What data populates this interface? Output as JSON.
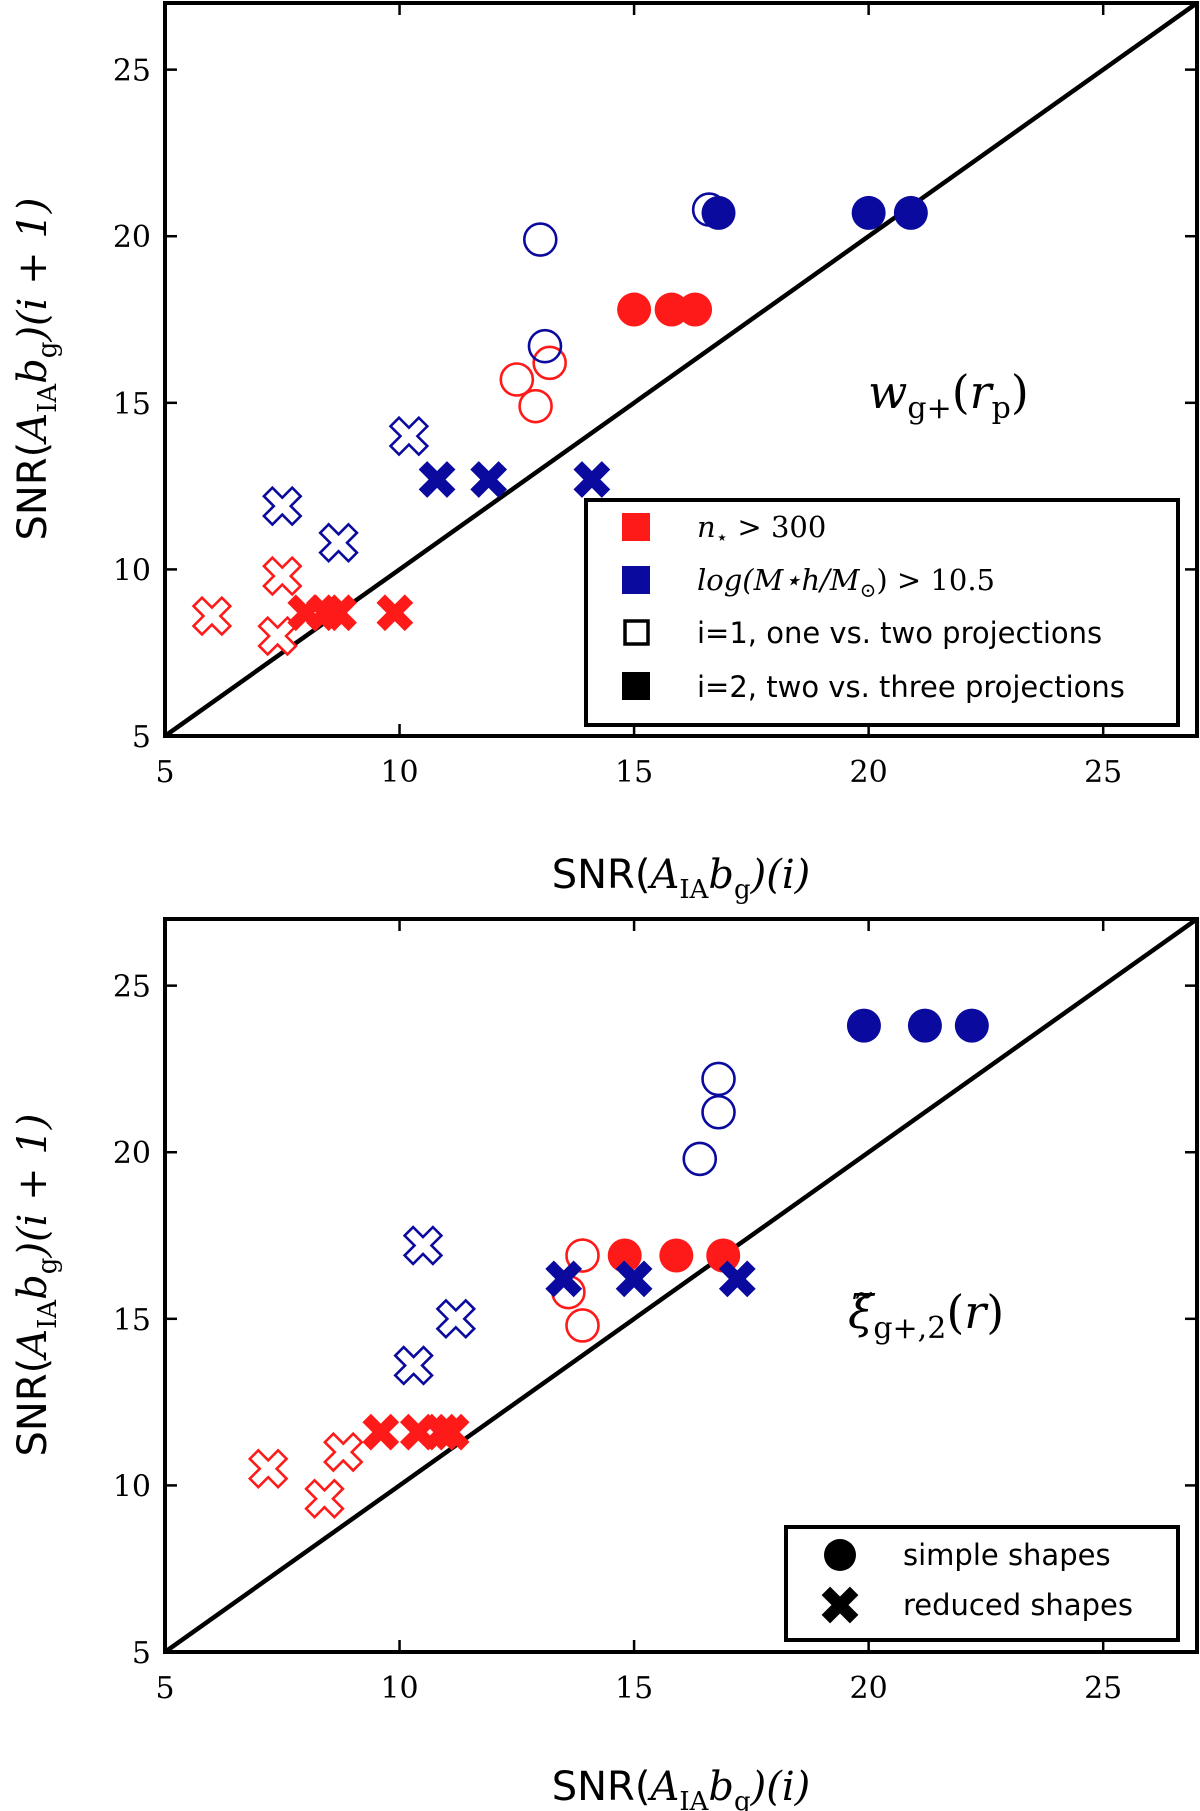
{
  "chart_data": [
    {
      "type": "scatter",
      "panel": "top",
      "annotation": {
        "main": "w",
        "sub1": "g+",
        "open": "(",
        "arg": "r",
        "sub2": "p",
        "close": ")"
      },
      "xlabel": {
        "prefix": "SNR(",
        "A": "A",
        "A_sub": "IA",
        "b": "b",
        "b_sub": "g",
        "suffix": ")(i)"
      },
      "ylabel": {
        "prefix": "SNR(",
        "A": "A",
        "A_sub": "IA",
        "b": "b",
        "b_sub": "g",
        "suffix": ")(i + 1)"
      },
      "xlim": [
        5,
        27
      ],
      "ylim": [
        5,
        27
      ],
      "xticks": [
        5,
        10,
        15,
        20,
        25
      ],
      "yticks": [
        5,
        10,
        15,
        20,
        25
      ],
      "tick_labels": [
        "5",
        "10",
        "15",
        "20",
        "25"
      ],
      "reference_line": "y = x",
      "legend": {
        "position": "lower-right",
        "items": [
          {
            "swatch": "red-square",
            "math": {
              "n": "n",
              "star": "⋆",
              "rel": " > 300"
            }
          },
          {
            "swatch": "blue-square",
            "math": {
              "text": "log(M⋆h/M",
              "sun": "⊙",
              "rel": ") > 10.5"
            }
          },
          {
            "swatch": "open-square",
            "label": "i=1, one vs. two projections"
          },
          {
            "swatch": "filled-square",
            "label": "i=2, two vs. three projections"
          }
        ]
      },
      "series": [
        {
          "name": "n★>300, i=1, simple shapes",
          "color": "red",
          "marker": "circle",
          "filled": false,
          "points": [
            [
              12.5,
              15.7
            ],
            [
              12.9,
              14.9
            ],
            [
              13.2,
              16.2
            ]
          ]
        },
        {
          "name": "n★>300, i=2, simple shapes",
          "color": "red",
          "marker": "circle",
          "filled": true,
          "points": [
            [
              15.0,
              17.8
            ],
            [
              15.8,
              17.8
            ],
            [
              16.3,
              17.8
            ]
          ]
        },
        {
          "name": "logM>10.5, i=1, simple shapes",
          "color": "blue",
          "marker": "circle",
          "filled": false,
          "points": [
            [
              13.0,
              19.9
            ],
            [
              13.1,
              16.7
            ],
            [
              16.6,
              20.8
            ]
          ]
        },
        {
          "name": "logM>10.5, i=2, simple shapes",
          "color": "blue",
          "marker": "circle",
          "filled": true,
          "points": [
            [
              16.8,
              20.7
            ],
            [
              20.0,
              20.7
            ],
            [
              20.9,
              20.7
            ]
          ]
        },
        {
          "name": "n★>300, i=1, reduced shapes",
          "color": "red",
          "marker": "cross",
          "filled": false,
          "points": [
            [
              6.0,
              8.6
            ],
            [
              7.4,
              8.0
            ],
            [
              7.5,
              9.8
            ]
          ]
        },
        {
          "name": "n★>300, i=2, reduced shapes",
          "color": "red",
          "marker": "cross",
          "filled": true,
          "points": [
            [
              8.0,
              8.7
            ],
            [
              8.4,
              8.7
            ],
            [
              8.7,
              8.7
            ],
            [
              9.9,
              8.7
            ]
          ]
        },
        {
          "name": "logM>10.5, i=1, reduced shapes",
          "color": "blue",
          "marker": "cross",
          "filled": false,
          "points": [
            [
              7.5,
              11.9
            ],
            [
              8.7,
              10.8
            ],
            [
              10.2,
              14.0
            ]
          ]
        },
        {
          "name": "logM>10.5, i=2, reduced shapes",
          "color": "blue",
          "marker": "cross",
          "filled": true,
          "points": [
            [
              10.8,
              12.7
            ],
            [
              11.9,
              12.7
            ],
            [
              14.1,
              12.7
            ]
          ]
        }
      ]
    },
    {
      "type": "scatter",
      "panel": "bottom",
      "annotation": {
        "main": "ξ̃",
        "sub1": "g+,2",
        "open": "(",
        "arg": "r",
        "sub2": "",
        "close": ")"
      },
      "xlabel": {
        "prefix": "SNR(",
        "A": "A",
        "A_sub": "IA",
        "b": "b",
        "b_sub": "g",
        "suffix": ")(i)"
      },
      "ylabel": {
        "prefix": "SNR(",
        "A": "A",
        "A_sub": "IA",
        "b": "b",
        "b_sub": "g",
        "suffix": ")(i + 1)"
      },
      "xlim": [
        5,
        27
      ],
      "ylim": [
        5,
        27
      ],
      "xticks": [
        5,
        10,
        15,
        20,
        25
      ],
      "yticks": [
        5,
        10,
        15,
        20,
        25
      ],
      "tick_labels": [
        "5",
        "10",
        "15",
        "20",
        "25"
      ],
      "reference_line": "y = x",
      "legend": {
        "position": "lower-right",
        "items": [
          {
            "swatch": "filled-circle",
            "label": "simple shapes"
          },
          {
            "swatch": "filled-cross",
            "label": "reduced shapes"
          }
        ]
      },
      "series": [
        {
          "name": "n★>300, i=1, simple shapes",
          "color": "red",
          "marker": "circle",
          "filled": false,
          "points": [
            [
              13.6,
              15.8
            ],
            [
              13.9,
              16.9
            ],
            [
              13.9,
              14.8
            ]
          ]
        },
        {
          "name": "n★>300, i=2, simple shapes",
          "color": "red",
          "marker": "circle",
          "filled": true,
          "points": [
            [
              14.8,
              16.9
            ],
            [
              15.9,
              16.9
            ],
            [
              16.9,
              16.9
            ]
          ]
        },
        {
          "name": "logM>10.5, i=1, simple shapes",
          "color": "blue",
          "marker": "circle",
          "filled": false,
          "points": [
            [
              16.4,
              19.8
            ],
            [
              16.8,
              21.2
            ],
            [
              16.8,
              22.2
            ]
          ]
        },
        {
          "name": "logM>10.5, i=2, simple shapes",
          "color": "blue",
          "marker": "circle",
          "filled": true,
          "points": [
            [
              19.9,
              23.8
            ],
            [
              21.2,
              23.8
            ],
            [
              22.2,
              23.8
            ]
          ]
        },
        {
          "name": "n★>300, i=1, reduced shapes",
          "color": "red",
          "marker": "cross",
          "filled": false,
          "points": [
            [
              7.2,
              10.5
            ],
            [
              8.4,
              9.6
            ],
            [
              8.8,
              11.0
            ]
          ]
        },
        {
          "name": "n★>300, i=2, reduced shapes",
          "color": "red",
          "marker": "cross",
          "filled": true,
          "points": [
            [
              9.6,
              11.6
            ],
            [
              10.4,
              11.6
            ],
            [
              10.9,
              11.6
            ],
            [
              11.1,
              11.6
            ]
          ]
        },
        {
          "name": "logM>10.5, i=1, reduced shapes",
          "color": "blue",
          "marker": "cross",
          "filled": false,
          "points": [
            [
              10.3,
              13.6
            ],
            [
              10.5,
              17.2
            ],
            [
              11.2,
              15.0
            ]
          ]
        },
        {
          "name": "logM>10.5, i=2, reduced shapes",
          "color": "blue",
          "marker": "cross",
          "filled": true,
          "points": [
            [
              13.5,
              16.2
            ],
            [
              15.0,
              16.2
            ],
            [
              17.2,
              16.2
            ]
          ]
        }
      ]
    }
  ],
  "colors": {
    "red": "#ff1a1a",
    "blue": "#0a0a9e",
    "black": "#000000"
  }
}
